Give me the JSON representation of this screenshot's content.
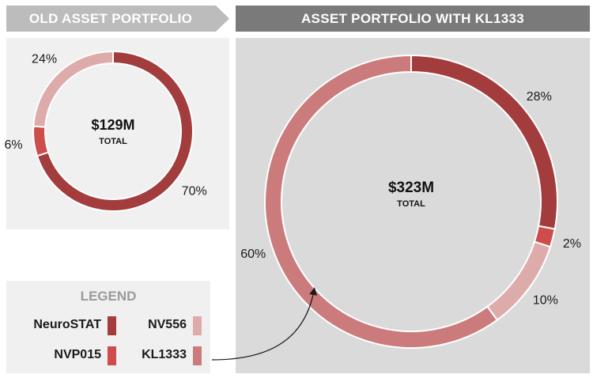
{
  "headers": {
    "old": "OLD ASSET PORTFOLIO",
    "new": "ASSET PORTFOLIO WITH KL1333"
  },
  "legend": {
    "title": "LEGEND",
    "items": [
      {
        "label": "NeuroSTAT",
        "color": "#a33c3c"
      },
      {
        "label": "NV556",
        "color": "#deabab"
      },
      {
        "label": "NVP015",
        "color": "#cf4c4c"
      },
      {
        "label": "KL1333",
        "color": "#cb7b7b"
      }
    ]
  },
  "chart_data": [
    {
      "type": "pie",
      "variant": "donut",
      "center_value": "$129M",
      "center_label": "TOTAL",
      "slices": [
        {
          "name": "NeuroSTAT",
          "value": 70,
          "label": "70%",
          "color": "#a33c3c"
        },
        {
          "name": "NVP015",
          "value": 6,
          "label": "6%",
          "color": "#cf4c4c"
        },
        {
          "name": "NV556",
          "value": 24,
          "label": "24%",
          "color": "#deabab"
        }
      ]
    },
    {
      "type": "pie",
      "variant": "donut",
      "center_value": "$323M",
      "center_label": "TOTAL",
      "slices": [
        {
          "name": "NeuroSTAT",
          "value": 28,
          "label": "28%",
          "color": "#a33c3c"
        },
        {
          "name": "NVP015",
          "value": 2,
          "label": "2%",
          "color": "#cf4c4c"
        },
        {
          "name": "NV556",
          "value": 10,
          "label": "10%",
          "color": "#deabab"
        },
        {
          "name": "KL1333",
          "value": 60,
          "label": "60%",
          "color": "#cb7b7b"
        }
      ]
    }
  ]
}
